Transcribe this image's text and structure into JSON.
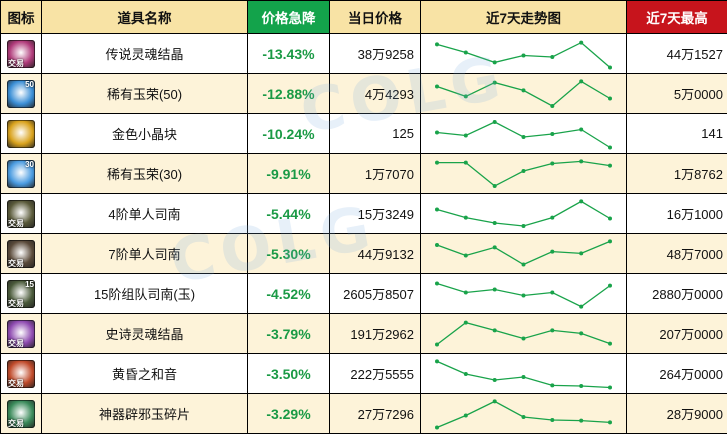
{
  "header": {
    "icon": "图标",
    "name": "道具名称",
    "change": "价格急降",
    "today": "当日价格",
    "trend": "近7天走势图",
    "max": "近7天最高"
  },
  "colors": {
    "header_bg": "#f8e3a5",
    "change_header_bg": "#13a34b",
    "max_header_bg": "#c7141c",
    "alt_row_bg": "#fdf3d9",
    "change_text": "#1a9a45",
    "trend_line": "#19a34a"
  },
  "rows": [
    {
      "icon": "soul-crystal-legendary-icon",
      "icon_color": "#b03a7a",
      "tag": "交易",
      "num": "",
      "name": "传说灵魂结晶",
      "change": "-13.43%",
      "today": "38万9258",
      "max": "44万1527",
      "trend": [
        0.82,
        0.55,
        0.22,
        0.45,
        0.4,
        0.88,
        0.05
      ]
    },
    {
      "icon": "rare-jade-50-icon",
      "icon_color": "#3b8fd6",
      "tag": "",
      "num": "50",
      "name": "稀有玉荣(50)",
      "change": "-12.88%",
      "today": "4万4293",
      "max": "5万0000",
      "trend": [
        0.75,
        0.42,
        0.88,
        0.62,
        0.1,
        0.92,
        0.35
      ]
    },
    {
      "icon": "gold-crystal-block-icon",
      "icon_color": "#d9a21c",
      "tag": "",
      "num": "",
      "name": "金色小晶块",
      "change": "-10.24%",
      "today": "125",
      "max": "141",
      "trend": [
        0.55,
        0.45,
        0.9,
        0.4,
        0.5,
        0.65,
        0.05
      ]
    },
    {
      "icon": "rare-jade-30-icon",
      "icon_color": "#4a9be0",
      "tag": "",
      "num": "30",
      "name": "稀有玉荣(30)",
      "change": "-9.91%",
      "today": "1万7070",
      "max": "1万8762",
      "trend": [
        0.88,
        0.88,
        0.1,
        0.6,
        0.85,
        0.92,
        0.78
      ]
    },
    {
      "icon": "tier4-solo-compass-icon",
      "icon_color": "#5a5a3a",
      "tag": "交易",
      "num": "",
      "name": "4阶单人司南",
      "change": "-5.44%",
      "today": "15万3249",
      "max": "16万1000",
      "trend": [
        0.65,
        0.38,
        0.2,
        0.1,
        0.38,
        0.92,
        0.35
      ]
    },
    {
      "icon": "tier7-solo-compass-icon",
      "icon_color": "#5a4a3a",
      "tag": "交易",
      "num": "",
      "name": "7阶单人司南",
      "change": "-5.30%",
      "today": "44万9132",
      "max": "48万7000",
      "trend": [
        0.8,
        0.45,
        0.72,
        0.15,
        0.58,
        0.52,
        0.92
      ]
    },
    {
      "icon": "tier15-party-compass-icon",
      "icon_color": "#4a5a3a",
      "tag": "交易",
      "num": "15",
      "name": "15阶组队司南(玉)",
      "change": "-4.52%",
      "today": "2605万8507",
      "max": "2880万0000",
      "trend": [
        0.85,
        0.55,
        0.65,
        0.45,
        0.55,
        0.08,
        0.78
      ]
    },
    {
      "icon": "soul-crystal-epic-icon",
      "icon_color": "#8e4ab0",
      "tag": "交易",
      "num": "",
      "name": "史诗灵魂结晶",
      "change": "-3.79%",
      "today": "191万2962",
      "max": "207万0000",
      "trend": [
        0.15,
        0.88,
        0.62,
        0.35,
        0.62,
        0.52,
        0.18
      ]
    },
    {
      "icon": "dusk-harmony-icon",
      "icon_color": "#c04a2a",
      "tag": "交易",
      "num": "",
      "name": "黄昏之和音",
      "change": "-3.50%",
      "today": "222万5555",
      "max": "264万0000",
      "trend": [
        0.92,
        0.5,
        0.3,
        0.4,
        0.12,
        0.1,
        0.05
      ]
    },
    {
      "icon": "artifact-jade-shard-icon",
      "icon_color": "#3a8a5a",
      "tag": "交易",
      "num": "",
      "name": "神器辟邪玉碎片",
      "change": "-3.29%",
      "today": "27万7296",
      "max": "28万9000",
      "trend": [
        0.05,
        0.45,
        0.92,
        0.4,
        0.3,
        0.28,
        0.22
      ]
    }
  ]
}
